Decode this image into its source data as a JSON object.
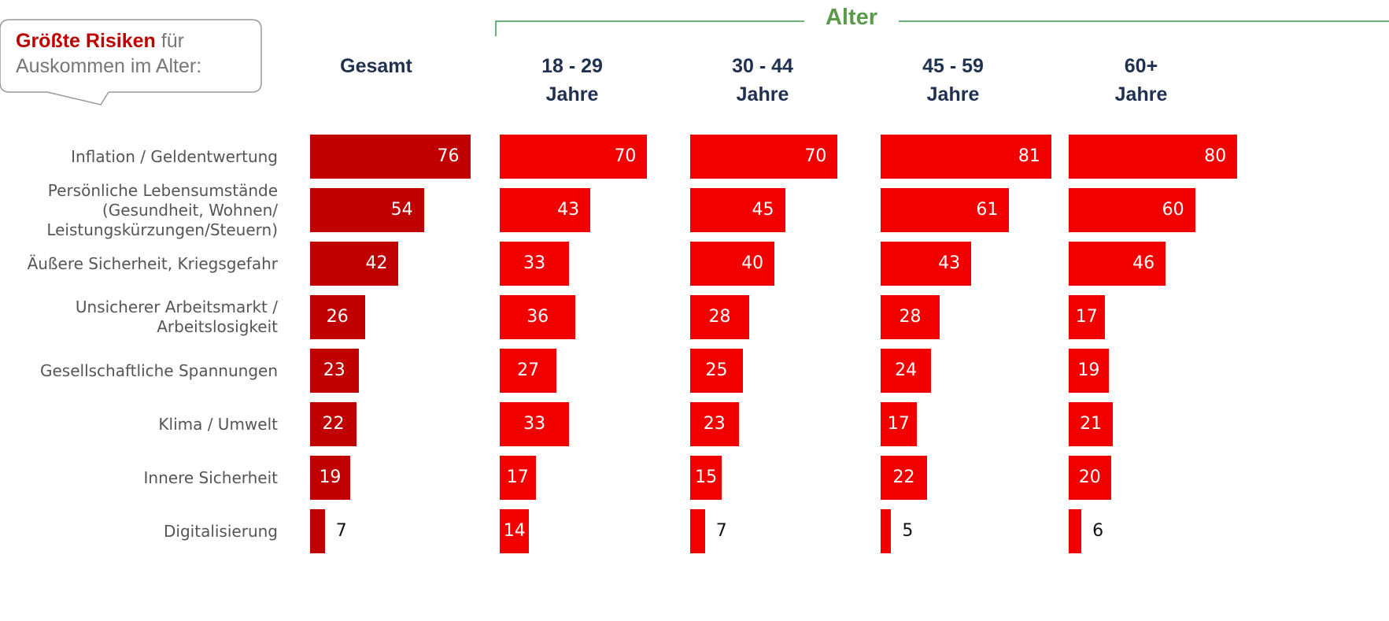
{
  "chart_data": {
    "type": "bar",
    "orientation": "horizontal",
    "title_highlight": "Größte Risiken",
    "title": "für Auskommen im Alter:",
    "group_label": "Alter",
    "categories": [
      "Inflation / Geldentwertung",
      "Persönliche Lebensumstände\n(Gesundheit, Wohnen/\nLeistungskürzungen/Steuern)",
      "Äußere Sicherheit, Kriegsgefahr",
      "Unsicherer Arbeitsmarkt /\nArbeitslosigkeit",
      "Gesellschaftliche Spannungen",
      "Klima / Umwelt",
      "Innere Sicherheit",
      "Digitalisierung"
    ],
    "xlim": [
      0,
      90
    ],
    "series": [
      {
        "name": "Gesamt",
        "color": "#c00000",
        "values": [
          76,
          54,
          42,
          26,
          23,
          22,
          19,
          7
        ]
      },
      {
        "name": "18 - 29\nJahre",
        "color": "#f20000",
        "values": [
          70,
          43,
          33,
          36,
          27,
          33,
          17,
          14
        ]
      },
      {
        "name": "30 - 44\nJahre",
        "color": "#f20000",
        "values": [
          70,
          45,
          40,
          28,
          25,
          23,
          15,
          7
        ]
      },
      {
        "name": "45 - 59\nJahre",
        "color": "#f20000",
        "values": [
          81,
          61,
          43,
          28,
          24,
          17,
          22,
          5
        ]
      },
      {
        "name": "60+\nJahre",
        "color": "#f20000",
        "values": [
          80,
          60,
          46,
          17,
          19,
          21,
          20,
          6
        ]
      }
    ]
  }
}
